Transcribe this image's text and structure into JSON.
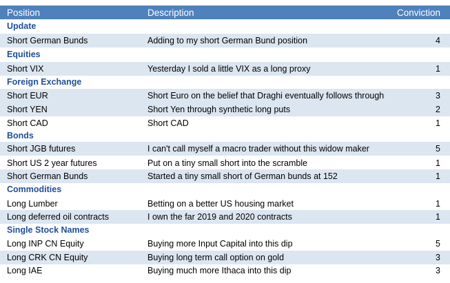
{
  "header": {
    "position": "Position",
    "description": "Description",
    "conviction": "Conviction"
  },
  "sections": [
    {
      "name": "Update",
      "rows": [
        {
          "position": "Short German Bunds",
          "description": "Adding to my short German Bund position",
          "conviction": "4"
        }
      ]
    },
    {
      "name": "Equities",
      "rows": [
        {
          "position": "Short VIX",
          "description": "Yesterday I sold a little VIX as a long proxy",
          "conviction": "1"
        }
      ]
    },
    {
      "name": "Foreign Exchange",
      "rows": [
        {
          "position": "Short EUR",
          "description": "Short Euro on the belief that Draghi eventually follows through",
          "conviction": "3"
        },
        {
          "position": "Short YEN",
          "description": "Short Yen through synthetic long puts",
          "conviction": "2"
        },
        {
          "position": "Short CAD",
          "description": "Short CAD",
          "conviction": "1"
        }
      ]
    },
    {
      "name": "Bonds",
      "rows": [
        {
          "position": "Short JGB futures",
          "description": "I can't call myself a macro trader without this widow maker",
          "conviction": "5"
        },
        {
          "position": "Short US 2 year futures",
          "description": "Put on a tiny small short into the scramble",
          "conviction": "1"
        },
        {
          "position": "Short German Bunds",
          "description": "Started a tiny small short of German bunds at 152",
          "conviction": "1"
        }
      ]
    },
    {
      "name": "Commodities",
      "rows": [
        {
          "position": "Long Lumber",
          "description": "Betting on a better US housing market",
          "conviction": "1"
        },
        {
          "position": "Long deferred oil contracts",
          "description": "I own the far 2019 and 2020 contracts",
          "conviction": "1"
        }
      ]
    },
    {
      "name": "Single Stock Names",
      "rows": [
        {
          "position": "Long INP CN Equity",
          "description": "Buying more Input Capital into this dip",
          "conviction": "5"
        },
        {
          "position": "Long CRK CN Equity",
          "description": "Buying long term call option on gold",
          "conviction": "3"
        },
        {
          "position": "Long IAE",
          "description": "Buying much more Ithaca into this dip",
          "conviction": "3"
        }
      ]
    }
  ]
}
